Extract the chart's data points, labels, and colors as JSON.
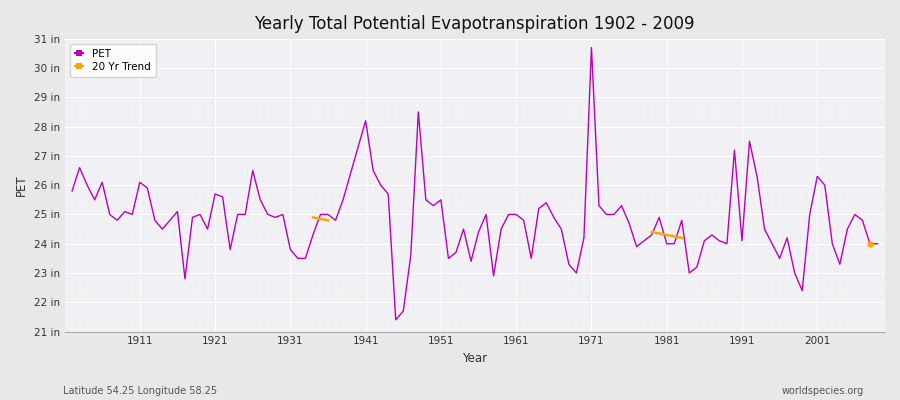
{
  "title": "Yearly Total Potential Evapotranspiration 1902 - 2009",
  "xlabel": "Year",
  "ylabel": "PET",
  "subtitle_left": "Latitude 54.25 Longitude 58.25",
  "subtitle_right": "worldspecies.org",
  "pet_color": "#bb00bb",
  "trend_color": "#ffa500",
  "fig_bg": "#f0f0f0",
  "plot_bg": "#f5f5f8",
  "ylim_min": 21,
  "ylim_max": 31,
  "years": [
    1902,
    1903,
    1904,
    1905,
    1906,
    1907,
    1908,
    1909,
    1910,
    1911,
    1912,
    1913,
    1914,
    1915,
    1916,
    1917,
    1918,
    1919,
    1920,
    1921,
    1922,
    1923,
    1924,
    1925,
    1926,
    1927,
    1928,
    1929,
    1930,
    1931,
    1932,
    1933,
    1934,
    1935,
    1936,
    1937,
    1938,
    1939,
    1940,
    1941,
    1942,
    1943,
    1944,
    1945,
    1946,
    1947,
    1948,
    1949,
    1950,
    1951,
    1952,
    1953,
    1954,
    1955,
    1956,
    1957,
    1958,
    1959,
    1960,
    1961,
    1962,
    1963,
    1964,
    1965,
    1966,
    1967,
    1968,
    1969,
    1970,
    1971,
    1972,
    1973,
    1974,
    1975,
    1976,
    1977,
    1978,
    1979,
    1980,
    1981,
    1982,
    1983,
    1984,
    1985,
    1986,
    1987,
    1988,
    1989,
    1990,
    1991,
    1992,
    1993,
    1994,
    1995,
    1996,
    1997,
    1998,
    1999,
    2000,
    2001,
    2002,
    2003,
    2004,
    2005,
    2006,
    2007,
    2008,
    2009
  ],
  "pet_values": [
    25.8,
    26.6,
    26.0,
    25.5,
    26.1,
    25.0,
    24.8,
    25.1,
    25.0,
    26.1,
    25.9,
    24.8,
    24.5,
    24.8,
    25.1,
    22.8,
    24.9,
    25.0,
    24.5,
    25.7,
    25.6,
    23.8,
    25.0,
    25.0,
    26.5,
    25.5,
    25.0,
    24.9,
    25.0,
    23.8,
    23.5,
    23.5,
    24.3,
    25.0,
    25.0,
    24.8,
    25.5,
    26.4,
    27.3,
    28.2,
    26.5,
    26.0,
    25.7,
    21.4,
    21.7,
    23.6,
    28.5,
    25.5,
    25.3,
    25.5,
    23.5,
    23.7,
    24.5,
    23.4,
    24.4,
    25.0,
    22.9,
    24.5,
    25.0,
    25.0,
    24.8,
    23.5,
    25.2,
    25.4,
    24.9,
    24.5,
    23.3,
    23.0,
    24.2,
    30.7,
    25.3,
    25.0,
    25.0,
    25.3,
    24.7,
    23.9,
    24.1,
    24.3,
    24.9,
    24.0,
    24.0,
    24.8,
    23.0,
    23.2,
    24.1,
    24.3,
    24.1,
    24.0,
    27.2,
    24.1,
    27.5,
    26.3,
    24.5,
    24.0,
    23.5,
    24.2,
    23.0,
    22.4,
    25.0,
    26.3,
    26.0,
    24.0,
    23.3,
    24.5,
    25.0,
    24.8,
    24.0,
    24.0
  ],
  "trend_seg1_years": [
    1934,
    1935,
    1936
  ],
  "trend_seg1_values": [
    24.9,
    24.85,
    24.8
  ],
  "trend_seg2_years": [
    1979,
    1980,
    1981,
    1982,
    1983
  ],
  "trend_seg2_values": [
    24.4,
    24.35,
    24.3,
    24.25,
    24.2
  ],
  "trend_dot_year": 2008,
  "trend_dot_value": 24.0,
  "xtick_years": [
    1911,
    1921,
    1931,
    1941,
    1951,
    1961,
    1971,
    1981,
    1991,
    2001
  ],
  "ytick_labels": [
    "21 in",
    "22 in",
    "23 in",
    "24 in",
    "25 in",
    "26 in",
    "27 in",
    "28 in",
    "29 in",
    "30 in",
    "31 in"
  ],
  "ytick_values": [
    21,
    22,
    23,
    24,
    25,
    26,
    27,
    28,
    29,
    30,
    31
  ]
}
